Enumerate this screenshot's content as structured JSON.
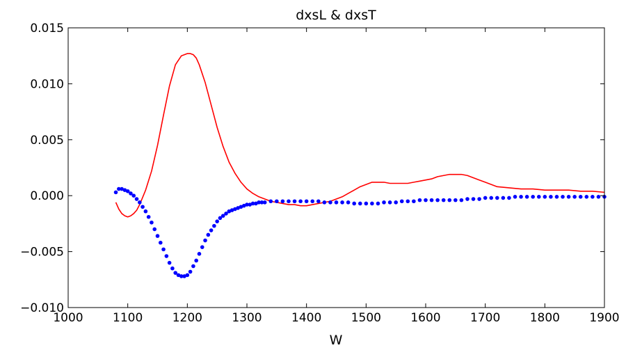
{
  "chart_data": {
    "type": "line",
    "title": "dxsL & dxsT",
    "xlabel": "W",
    "ylabel": "",
    "xlim": [
      1000,
      1900
    ],
    "ylim": [
      -0.01,
      0.015
    ],
    "xticks": [
      1000,
      1100,
      1200,
      1300,
      1400,
      1500,
      1600,
      1700,
      1800,
      1900
    ],
    "xtick_labels": [
      "1000",
      "1100",
      "1200",
      "1300",
      "1400",
      "1500",
      "1600",
      "1700",
      "1800",
      "1900"
    ],
    "yticks": [
      -0.01,
      -0.005,
      0.0,
      0.005,
      0.01,
      0.015
    ],
    "ytick_labels": [
      "−0.010",
      "−0.005",
      "0.000",
      "0.005",
      "0.010",
      "0.015"
    ],
    "grid": false,
    "series": [
      {
        "style": "line",
        "color": "#ff0000",
        "x": [
          1080,
          1085,
          1090,
          1095,
          1100,
          1105,
          1110,
          1115,
          1120,
          1130,
          1140,
          1150,
          1160,
          1170,
          1180,
          1190,
          1200,
          1205,
          1210,
          1215,
          1220,
          1230,
          1240,
          1250,
          1260,
          1270,
          1280,
          1290,
          1300,
          1310,
          1320,
          1330,
          1340,
          1350,
          1360,
          1370,
          1380,
          1390,
          1400,
          1410,
          1420,
          1430,
          1440,
          1450,
          1460,
          1470,
          1480,
          1490,
          1500,
          1510,
          1520,
          1530,
          1540,
          1550,
          1560,
          1570,
          1580,
          1590,
          1600,
          1610,
          1620,
          1630,
          1640,
          1650,
          1660,
          1670,
          1680,
          1690,
          1700,
          1710,
          1720,
          1740,
          1760,
          1780,
          1800,
          1820,
          1840,
          1860,
          1880,
          1900
        ],
        "y": [
          -0.0006,
          -0.0012,
          -0.0016,
          -0.0018,
          -0.0019,
          -0.0018,
          -0.0016,
          -0.0013,
          -0.0008,
          0.0005,
          0.0022,
          0.0045,
          0.0072,
          0.0098,
          0.0117,
          0.0125,
          0.0127,
          0.0127,
          0.0126,
          0.0123,
          0.0117,
          0.0101,
          0.0081,
          0.0061,
          0.0044,
          0.003,
          0.002,
          0.0012,
          0.0006,
          0.0002,
          -0.0001,
          -0.0003,
          -0.0005,
          -0.0006,
          -0.0007,
          -0.0008,
          -0.0008,
          -0.0009,
          -0.0009,
          -0.0008,
          -0.0007,
          -0.0006,
          -0.0005,
          -0.0003,
          -0.0001,
          0.0002,
          0.0005,
          0.0008,
          0.001,
          0.0012,
          0.0012,
          0.0012,
          0.0011,
          0.0011,
          0.0011,
          0.0011,
          0.0012,
          0.0013,
          0.0014,
          0.0015,
          0.0017,
          0.0018,
          0.0019,
          0.0019,
          0.0019,
          0.0018,
          0.0016,
          0.0014,
          0.0012,
          0.001,
          0.0008,
          0.0007,
          0.0006,
          0.0006,
          0.0005,
          0.0005,
          0.0005,
          0.0004,
          0.0004,
          0.0003
        ]
      },
      {
        "style": "markers",
        "color": "#0000ff",
        "x": [
          1080,
          1085,
          1090,
          1095,
          1100,
          1105,
          1110,
          1115,
          1120,
          1125,
          1130,
          1135,
          1140,
          1145,
          1150,
          1155,
          1160,
          1165,
          1170,
          1175,
          1180,
          1185,
          1190,
          1195,
          1200,
          1205,
          1210,
          1215,
          1220,
          1225,
          1230,
          1235,
          1240,
          1245,
          1250,
          1255,
          1260,
          1265,
          1270,
          1275,
          1280,
          1285,
          1290,
          1295,
          1300,
          1305,
          1310,
          1315,
          1320,
          1325,
          1330,
          1340,
          1350,
          1360,
          1370,
          1380,
          1390,
          1400,
          1410,
          1420,
          1430,
          1440,
          1450,
          1460,
          1470,
          1480,
          1490,
          1500,
          1510,
          1520,
          1530,
          1540,
          1550,
          1560,
          1570,
          1580,
          1590,
          1600,
          1610,
          1620,
          1630,
          1640,
          1650,
          1660,
          1670,
          1680,
          1690,
          1700,
          1710,
          1720,
          1730,
          1740,
          1750,
          1760,
          1770,
          1780,
          1790,
          1800,
          1810,
          1820,
          1830,
          1840,
          1850,
          1860,
          1870,
          1880,
          1890,
          1900
        ],
        "y": [
          0.0003,
          0.0006,
          0.0006,
          0.0005,
          0.0004,
          0.0002,
          0.0,
          -0.0003,
          -0.0006,
          -0.001,
          -0.0014,
          -0.0019,
          -0.0024,
          -0.003,
          -0.0036,
          -0.0042,
          -0.0048,
          -0.0054,
          -0.006,
          -0.0065,
          -0.0069,
          -0.0071,
          -0.0072,
          -0.0072,
          -0.0071,
          -0.0068,
          -0.0063,
          -0.0058,
          -0.0052,
          -0.0046,
          -0.004,
          -0.0035,
          -0.0031,
          -0.0027,
          -0.0023,
          -0.002,
          -0.0018,
          -0.0016,
          -0.0014,
          -0.0013,
          -0.0012,
          -0.0011,
          -0.001,
          -0.0009,
          -0.0008,
          -0.0008,
          -0.0007,
          -0.0007,
          -0.0006,
          -0.0006,
          -0.0006,
          -0.0005,
          -0.0005,
          -0.0005,
          -0.0005,
          -0.0005,
          -0.0005,
          -0.0005,
          -0.0005,
          -0.0005,
          -0.0006,
          -0.0006,
          -0.0006,
          -0.0006,
          -0.0006,
          -0.0007,
          -0.0007,
          -0.0007,
          -0.0007,
          -0.0007,
          -0.0006,
          -0.0006,
          -0.0006,
          -0.0005,
          -0.0005,
          -0.0005,
          -0.0004,
          -0.0004,
          -0.0004,
          -0.0004,
          -0.0004,
          -0.0004,
          -0.0004,
          -0.0004,
          -0.0003,
          -0.0003,
          -0.0003,
          -0.0002,
          -0.0002,
          -0.0002,
          -0.0002,
          -0.0002,
          -0.0001,
          -0.0001,
          -0.0001,
          -0.0001,
          -0.0001,
          -0.0001,
          -0.0001,
          -0.0001,
          -0.0001,
          -0.0001,
          -0.0001,
          -0.0001,
          -0.0001,
          -0.0001,
          -0.0001,
          -0.0001
        ]
      }
    ]
  }
}
